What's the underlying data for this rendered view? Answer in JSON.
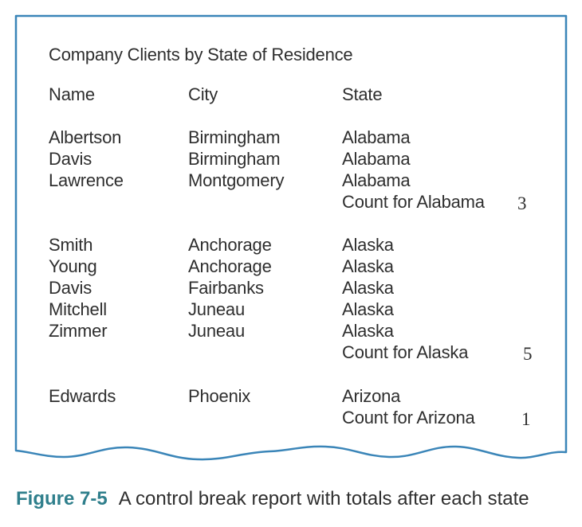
{
  "report": {
    "title": "Company Clients by State of Residence",
    "headers": {
      "name": "Name",
      "city": "City",
      "state": "State"
    },
    "groups": [
      {
        "rows": [
          {
            "name": "Albertson",
            "city": "Birmingham",
            "state": "Alabama"
          },
          {
            "name": "Davis",
            "city": "Birmingham",
            "state": "Alabama"
          },
          {
            "name": "Lawrence",
            "city": "Montgomery",
            "state": "Alabama"
          }
        ],
        "count_label": "Count for Alabama",
        "count": "3"
      },
      {
        "rows": [
          {
            "name": "Smith",
            "city": "Anchorage",
            "state": "Alaska"
          },
          {
            "name": "Young",
            "city": "Anchorage",
            "state": "Alaska"
          },
          {
            "name": "Davis",
            "city": "Fairbanks",
            "state": "Alaska"
          },
          {
            "name": "Mitchell",
            "city": "Juneau",
            "state": "Alaska"
          },
          {
            "name": "Zimmer",
            "city": "Juneau",
            "state": "Alaska"
          }
        ],
        "count_label": "Count for Alaska",
        "count": "5"
      },
      {
        "rows": [
          {
            "name": "Edwards",
            "city": "Phoenix",
            "state": "Arizona"
          }
        ],
        "count_label": "Count for Arizona",
        "count": "1"
      }
    ]
  },
  "caption": {
    "figure_label": "Figure 7-5",
    "text": "A control break report with totals after each state"
  },
  "colors": {
    "frame_stroke": "#3a85b8",
    "caption_label": "#2f7f8c",
    "text": "#2e2e2e"
  }
}
